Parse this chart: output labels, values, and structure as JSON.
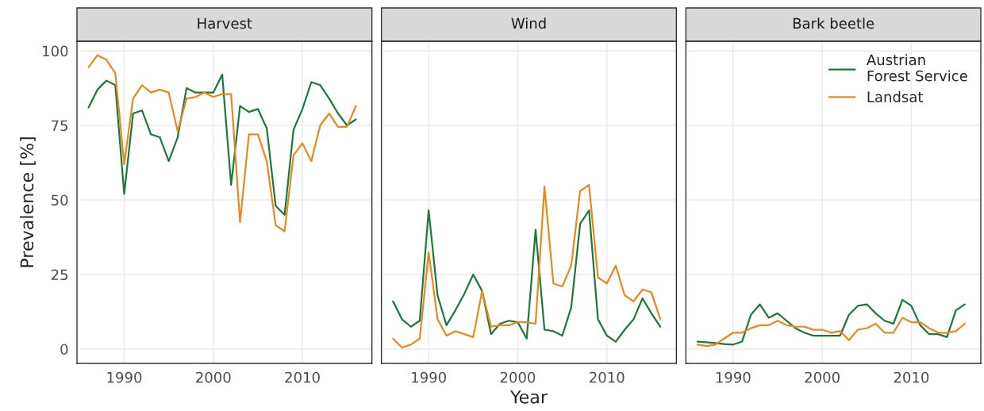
{
  "chart_data": [
    {
      "type": "line",
      "title": "Harvest",
      "ylabel": "Prevalence [%]",
      "xlim": [
        1984.7,
        2017.8
      ],
      "xticks": [
        1990,
        2000,
        2010
      ],
      "ylim": [
        -4.8,
        103.2
      ],
      "yticks": [
        0,
        25,
        50,
        75,
        100
      ],
      "grid": true,
      "tick_labels": true,
      "x": [
        1986,
        1987,
        1988,
        1989,
        1990,
        1991,
        1992,
        1993,
        1994,
        1995,
        1996,
        1997,
        1998,
        1999,
        2000,
        2001,
        2002,
        2003,
        2004,
        2005,
        2006,
        2007,
        2008,
        2009,
        2010,
        2011,
        2012,
        2013,
        2014,
        2015,
        2016
      ],
      "series": [
        {
          "color": "#1b7a3a",
          "values": [
            81,
            87,
            90,
            88.5,
            52,
            79,
            80,
            72,
            71,
            63,
            71,
            87.5,
            86,
            86,
            86,
            92,
            55,
            81.5,
            79.5,
            80.5,
            74,
            48,
            45,
            73.5,
            80.5,
            89.5,
            88.5,
            84,
            79,
            75,
            77
          ]
        },
        {
          "color": "#e8891c",
          "values": [
            94.5,
            98.5,
            97,
            92.5,
            62,
            84,
            88.5,
            86,
            87,
            86,
            73,
            84,
            84.5,
            86,
            84.5,
            85.5,
            85.5,
            42.5,
            72,
            72,
            63,
            41.5,
            39.5,
            65,
            69,
            63,
            75,
            79,
            74.5,
            74.5,
            81.5
          ]
        }
      ]
    },
    {
      "type": "line",
      "title": "Wind",
      "xlabel": "Year",
      "xlim": [
        1984.7,
        2017.8
      ],
      "xticks": [
        1990,
        2000,
        2010
      ],
      "ylim": [
        -4.8,
        103.2
      ],
      "yticks": [
        0,
        25,
        50,
        75,
        100
      ],
      "grid": true,
      "tick_labels": "x",
      "x": [
        1986,
        1987,
        1988,
        1989,
        1990,
        1991,
        1992,
        1993,
        1994,
        1995,
        1996,
        1997,
        1998,
        1999,
        2000,
        2001,
        2002,
        2003,
        2004,
        2005,
        2006,
        2007,
        2008,
        2009,
        2010,
        2011,
        2012,
        2013,
        2014,
        2015,
        2016
      ],
      "series": [
        {
          "color": "#1b7a3a",
          "values": [
            16,
            10,
            7.5,
            9.5,
            46.5,
            18,
            8,
            13,
            18.5,
            25,
            19.5,
            5,
            8.5,
            9.5,
            9,
            3.5,
            40,
            6.5,
            6,
            4.5,
            14,
            42,
            46.5,
            10,
            4.5,
            2.5,
            6.5,
            10,
            17,
            12,
            7.5
          ]
        },
        {
          "color": "#e8891c",
          "values": [
            3.5,
            0.5,
            1.5,
            3.5,
            32.5,
            10,
            4.5,
            6,
            5,
            4,
            19.5,
            7.5,
            8,
            8,
            9,
            9,
            8.5,
            54.5,
            22,
            21,
            28,
            53,
            55,
            24,
            22,
            28,
            18,
            16,
            20,
            19,
            10
          ]
        }
      ]
    },
    {
      "type": "line",
      "title": "Bark beetle",
      "xlim": [
        1984.7,
        2017.8
      ],
      "xticks": [
        1990,
        2000,
        2010
      ],
      "ylim": [
        -4.8,
        103.2
      ],
      "yticks": [
        0,
        25,
        50,
        75,
        100
      ],
      "grid": true,
      "tick_labels": "x",
      "legend": "top right",
      "x": [
        1986,
        1987,
        1988,
        1989,
        1990,
        1991,
        1992,
        1993,
        1994,
        1995,
        1996,
        1997,
        1998,
        1999,
        2000,
        2001,
        2002,
        2003,
        2004,
        2005,
        2006,
        2007,
        2008,
        2009,
        2010,
        2011,
        2012,
        2013,
        2014,
        2015,
        2016
      ],
      "series": [
        {
          "name": "Austrian\nForest Service",
          "color": "#1b7a3a",
          "values": [
            2.5,
            2.3,
            2,
            1.7,
            1.5,
            2.5,
            11.5,
            15,
            10.5,
            12,
            9.5,
            7,
            5.5,
            4.5,
            4.5,
            4.5,
            4.5,
            11.5,
            14.5,
            15,
            12,
            9.5,
            8.5,
            16.5,
            14.5,
            8,
            5,
            5,
            4,
            13,
            15
          ]
        },
        {
          "name": "Landsat",
          "color": "#e8891c",
          "values": [
            1.5,
            1,
            1.5,
            3.5,
            5.5,
            5.5,
            7,
            8,
            8,
            9.5,
            8,
            7.5,
            7.5,
            6.5,
            6.5,
            5.5,
            6,
            3,
            6.5,
            7,
            8.5,
            5.5,
            5.5,
            10.5,
            9,
            9,
            7,
            5.5,
            5.5,
            6,
            8.5
          ]
        }
      ]
    }
  ]
}
